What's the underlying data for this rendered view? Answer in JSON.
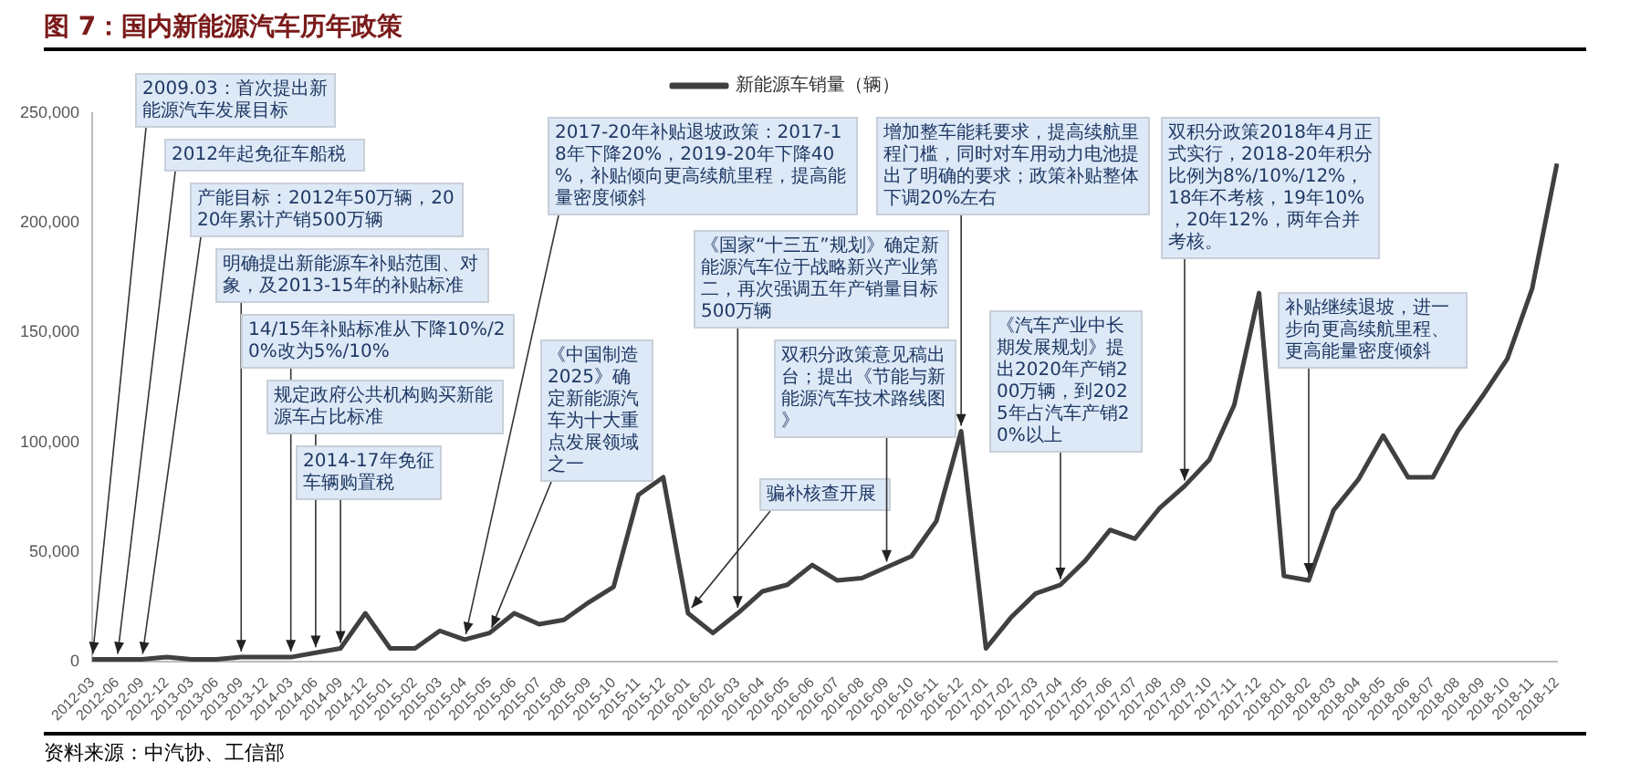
{
  "chart_data": {
    "type": "line",
    "title": "图 7：国内新能源汽车历年政策",
    "categories": [
      "2012-03",
      "2012-06",
      "2012-09",
      "2012-12",
      "2013-03",
      "2013-06",
      "2013-09",
      "2013-12",
      "2014-03",
      "2014-06",
      "2014-09",
      "2014-12",
      "2015-01",
      "2015-02",
      "2015-03",
      "2015-04",
      "2015-05",
      "2015-06",
      "2015-07",
      "2015-08",
      "2015-09",
      "2015-10",
      "2015-11",
      "2015-12",
      "2016-01",
      "2016-02",
      "2016-03",
      "2016-04",
      "2016-05",
      "2016-06",
      "2016-07",
      "2016-08",
      "2016-09",
      "2016-10",
      "2016-11",
      "2016-12",
      "2017-01",
      "2017-02",
      "2017-03",
      "2017-04",
      "2017-05",
      "2017-06",
      "2017-07",
      "2017-08",
      "2017-09",
      "2017-10",
      "2017-11",
      "2017-12",
      "2018-01",
      "2018-02",
      "2018-03",
      "2018-04",
      "2018-05",
      "2018-06",
      "2018-07",
      "2018-08",
      "2018-09",
      "2018-10",
      "2018-11",
      "2018-12"
    ],
    "series": [
      {
        "name": "新能源车销量（辆）",
        "color": "#404040",
        "values": [
          1000,
          1000,
          1000,
          2000,
          1000,
          1000,
          2000,
          2000,
          2000,
          4000,
          6000,
          22000,
          6000,
          6000,
          14000,
          10000,
          13000,
          22000,
          17000,
          19000,
          27000,
          34000,
          76000,
          84000,
          22000,
          13000,
          22000,
          32000,
          35000,
          44000,
          37000,
          38000,
          43000,
          48000,
          64000,
          105000,
          6000,
          20000,
          31000,
          35000,
          46000,
          60000,
          56000,
          70000,
          80000,
          92000,
          117000,
          168000,
          39000,
          37000,
          69000,
          83000,
          103000,
          84000,
          84000,
          105000,
          121000,
          138000,
          170000,
          227000
        ]
      }
    ],
    "ylim": [
      0,
      250000
    ],
    "yticks": [
      0,
      {
        "value": 50000,
        "label": "50,000"
      },
      {
        "value": 100000,
        "label": "100,000"
      },
      {
        "value": 150000,
        "label": "150,000"
      },
      {
        "value": 200000,
        "label": "200,000"
      },
      {
        "value": 250000,
        "label": "250,000"
      }
    ],
    "legend": "top",
    "annotations": [
      {
        "text": "2009.03：首次提出新能源汽车发展目标",
        "x": "2012-03",
        "y": 1000
      },
      {
        "text": "2012年起免征车船税",
        "x": "2012-06",
        "y": 1000
      },
      {
        "text": "产能目标：2012年50万辆，2020年累计产销500万辆",
        "x": "2012-09",
        "y": 1000
      },
      {
        "text": "明确提出新能源车补贴范围、对象，及2013-15年的补贴标准",
        "x": "2013-09",
        "y": 2000
      },
      {
        "text": "14/15年补贴标准从下降10%/20%改为5%/10%",
        "x": "2014-03",
        "y": 2000
      },
      {
        "text": "规定政府公共机构购买新能源车占比标准",
        "x": "2014-06",
        "y": 4000
      },
      {
        "text": "2014-17年免征车辆购置税",
        "x": "2014-09",
        "y": 6000
      },
      {
        "text": "2017-20年补贴退坡政策：2017-18年下降20%，2019-20年下降40%，补贴倾向更高续航里程，提高能量密度倾斜",
        "x": "2015-04",
        "y": 10000
      },
      {
        "text": "《中国制造2025》确定新能源汽车为十大重点发展领域之一",
        "x": "2015-05",
        "y": 13000
      },
      {
        "text": "骗补核查开展",
        "x": "2016-01",
        "y": 22000
      },
      {
        "text": "《国家“十三五”规划》确定新能源汽车位于战略新兴产业第二，再次强调五年产销量目标500万辆",
        "x": "2016-03",
        "y": 22000
      },
      {
        "text": "双积分政策意见稿出台；提出《节能与新能源汽车技术路线图》",
        "x": "2016-09",
        "y": 43000
      },
      {
        "text": "增加整车能耗要求，提高续航里程门槛，同时对车用动力电池提出了明确的要求；政策补贴整体下调20%左右",
        "x": "2016-12",
        "y": 105000
      },
      {
        "text": "《汽车产业中长期发展规划》提出2020年产销200万辆，到2025年占汽车产销20%以上",
        "x": "2017-04",
        "y": 35000
      },
      {
        "text": "双积分政策2018年4月正式实行，2018-20年积分比例为8%/10%/12%，18年不考核，19年10%，20年12%，两年合并考核。",
        "x": "2017-09",
        "y": 80000
      },
      {
        "text": "补贴继续退坡，进一步向更高续航里程、更高能量密度倾斜",
        "x": "2018-02",
        "y": 37000
      },
      "资料来源：中汽协、工信部"
    ]
  }
}
